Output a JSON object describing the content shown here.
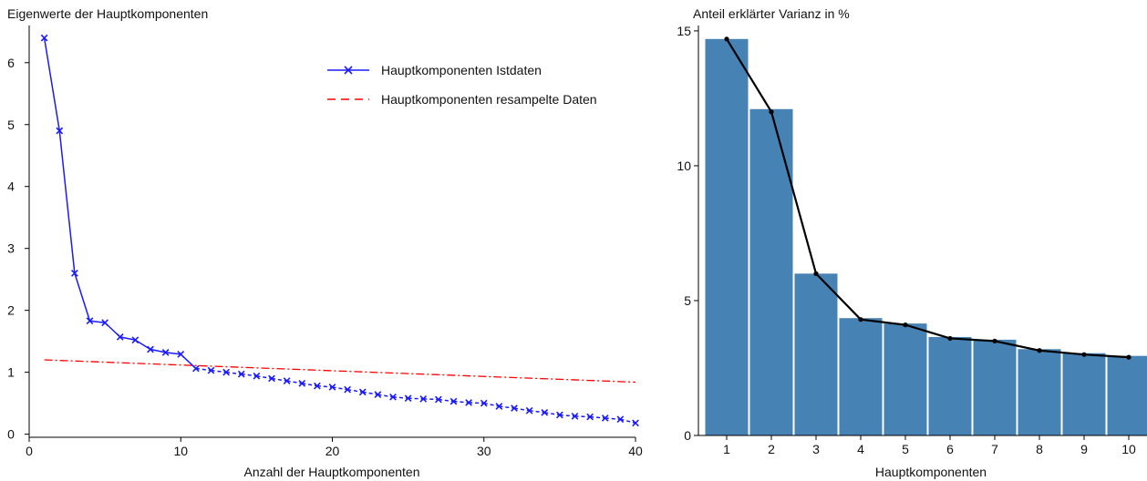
{
  "chart_data": [
    {
      "type": "line",
      "title": "Eigenwerte der Hauptkomponenten",
      "xlabel": "Anzahl der Hauptkomponenten",
      "ylabel": "",
      "xlim": [
        0,
        40
      ],
      "ylim": [
        -0.05,
        6.6
      ],
      "xticks": [
        "0",
        "10",
        "20",
        "30",
        "40"
      ],
      "yticks": [
        "0",
        "1",
        "2",
        "3",
        "4",
        "5",
        "6"
      ],
      "grid": false,
      "legend_position": "top-right",
      "series": [
        {
          "name": "Hauptkomponenten Istdaten",
          "color": "#1a1aff",
          "marker": "x",
          "x": [
            1,
            2,
            3,
            4,
            5,
            6,
            7,
            8,
            9,
            10,
            11,
            12,
            13,
            14,
            15,
            16,
            17,
            18,
            19,
            20,
            21,
            22,
            23,
            24,
            25,
            26,
            27,
            28,
            29,
            30,
            31,
            32,
            33,
            34,
            35,
            36,
            37,
            38,
            39,
            40
          ],
          "values": [
            6.4,
            4.9,
            2.6,
            1.83,
            1.8,
            1.57,
            1.52,
            1.37,
            1.32,
            1.29,
            1.06,
            1.03,
            1.0,
            0.97,
            0.94,
            0.9,
            0.86,
            0.82,
            0.78,
            0.76,
            0.72,
            0.68,
            0.64,
            0.6,
            0.58,
            0.57,
            0.56,
            0.53,
            0.51,
            0.5,
            0.45,
            0.42,
            0.38,
            0.35,
            0.31,
            0.29,
            0.28,
            0.26,
            0.24,
            0.18
          ]
        },
        {
          "name": "Hauptkomponenten resampelte Daten",
          "color": "#ff0000",
          "style": "dash-dot",
          "x": [
            1,
            40
          ],
          "values": [
            1.2,
            0.84
          ]
        }
      ]
    },
    {
      "type": "bar",
      "title": "Anteil erklärter Varianz in %",
      "xlabel": "Hauptkomponenten",
      "ylabel": "",
      "categories": [
        "1",
        "2",
        "3",
        "4",
        "5",
        "6",
        "7",
        "8",
        "9",
        "10"
      ],
      "ylim": [
        0,
        15.2
      ],
      "yticks": [
        "0",
        "5",
        "10",
        "15"
      ],
      "grid": false,
      "bar_color": "#4682b4",
      "line_color": "#000000",
      "values": [
        14.7,
        12.1,
        6.0,
        4.35,
        4.15,
        3.65,
        3.55,
        3.2,
        3.05,
        2.95
      ],
      "line_values": [
        14.7,
        12.0,
        6.0,
        4.3,
        4.1,
        3.6,
        3.5,
        3.15,
        3.0,
        2.9
      ]
    }
  ]
}
